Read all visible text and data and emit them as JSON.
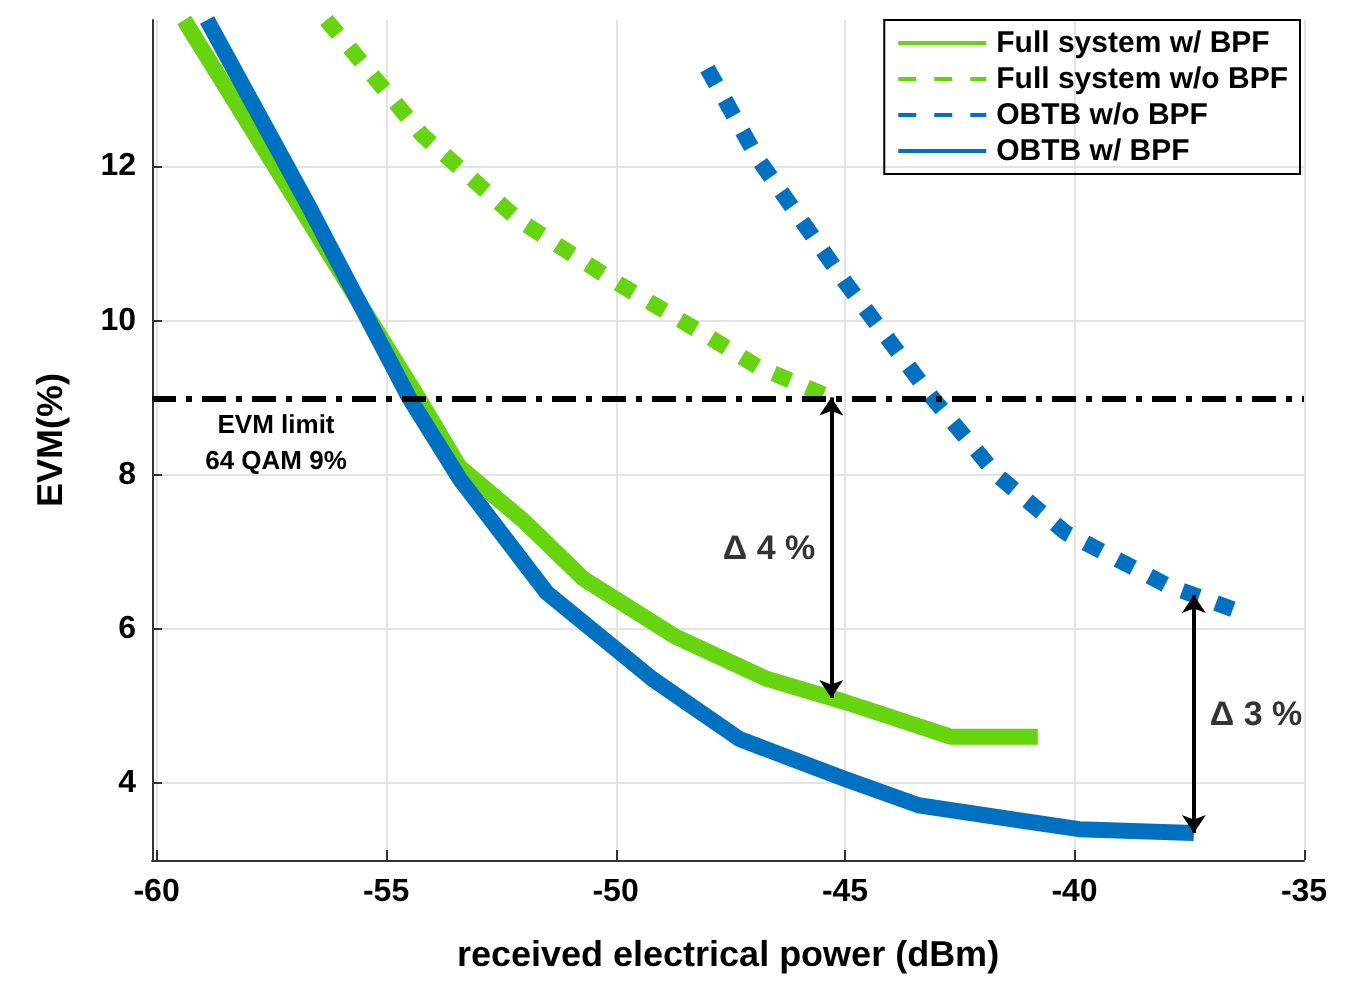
{
  "chart_data": {
    "type": "line",
    "xlabel": "received electrical power (dBm)",
    "ylabel": "EVM(%)",
    "xlim": [
      -60.1,
      -35
    ],
    "xticks": [
      -60,
      -55,
      -50,
      -45,
      -40,
      -35
    ],
    "ylim": [
      3,
      13.9
    ],
    "yticks": [
      4,
      6,
      8,
      10,
      12
    ],
    "grid": true,
    "legend": "top right",
    "marker": "none",
    "series": [
      {
        "name": "Full system w/ BPF",
        "color": "#66d40e",
        "line_style": "solid",
        "x": [
          -59.4,
          -56.8,
          -54.3,
          -53.4,
          -52,
          -50.7,
          -48.7,
          -46.7,
          -45,
          -42.7,
          -40.8
        ],
        "values": [
          13.9,
          11.4,
          9,
          8.1,
          7.4,
          6.65,
          5.9,
          5.35,
          5.05,
          4.6,
          4.6
        ]
      },
      {
        "name": "Full system w/o BPF",
        "color": "#66d40e",
        "line_style": "dotted",
        "x": [
          -56.3,
          -54.2,
          -52.1,
          -50,
          -48,
          -46.9,
          -45.3
        ],
        "values": [
          13.9,
          12.4,
          11.3,
          10.5,
          9.8,
          9.4,
          9.0
        ]
      },
      {
        "name": "OBTB w/o BPF",
        "color": "#0070c0",
        "line_style": "dotted",
        "x": [
          -48,
          -46.9,
          -45,
          -43.1,
          -41.7,
          -40.2,
          -38,
          -36.3
        ],
        "values": [
          13.27,
          12.1,
          10.5,
          9.0,
          8.0,
          7.25,
          6.57,
          6.2
        ]
      },
      {
        "name": "OBTB w/ BPF",
        "color": "#0070c0",
        "line_style": "solid",
        "x": [
          -58.9,
          -56.7,
          -54.5,
          -53.4,
          -51.5,
          -49.2,
          -47.3,
          -45,
          -43.4,
          -39.9,
          -37.4
        ],
        "values": [
          13.9,
          11.5,
          9,
          7.95,
          6.47,
          5.35,
          4.57,
          4.05,
          3.71,
          3.4,
          3.35
        ]
      }
    ],
    "ref_lines": [
      {
        "axis": "y",
        "value": 9,
        "label": "EVM limit\n64 QAM 9%",
        "color": "#000000",
        "line_style": "dashdot"
      }
    ],
    "annotations": [
      "Δ 4 %",
      "Δ 3 %"
    ]
  }
}
